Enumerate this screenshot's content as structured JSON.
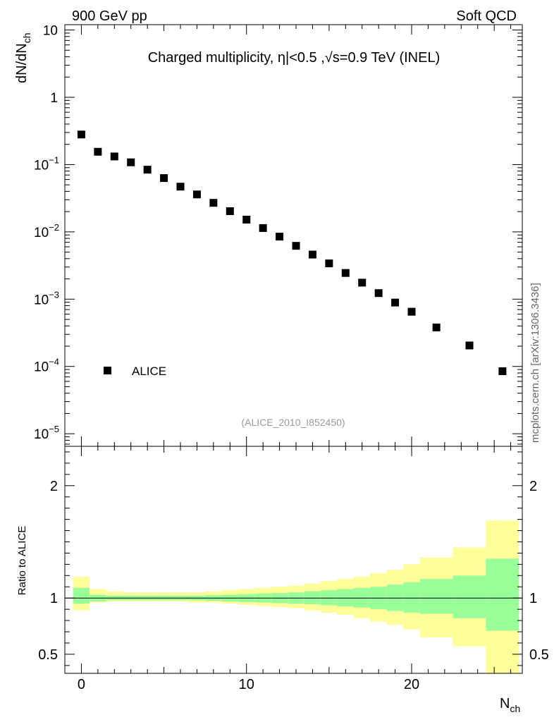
{
  "header": {
    "left_label": "900 GeV pp",
    "right_label": "Soft QCD",
    "side_label": "mcplots.cern.ch [arXiv:1306.3436]"
  },
  "chart_data": [
    {
      "type": "scatter",
      "panel": "main",
      "title": "Charged multiplicity, η|<0.5 ,√s=0.9 TeV (INEL)",
      "ylabel": "dN/dN",
      "ylabel_sub": "ch",
      "xlabel": "N",
      "xlabel_sub": "ch",
      "yscale": "log",
      "ylim": [
        6.5e-06,
        12
      ],
      "xlim": [
        -1,
        26.7
      ],
      "ytick_labels": [
        {
          "value": 10,
          "base": "10",
          "exp": ""
        },
        {
          "value": 1,
          "base": "1",
          "exp": ""
        },
        {
          "value": 0.1,
          "base": "10",
          "exp": "−1"
        },
        {
          "value": 0.01,
          "base": "10",
          "exp": "−2"
        },
        {
          "value": 0.001,
          "base": "10",
          "exp": "−3"
        },
        {
          "value": 0.0001,
          "base": "10",
          "exp": "−4"
        },
        {
          "value": 1e-05,
          "base": "10",
          "exp": "−5"
        }
      ],
      "legend": {
        "label": "ALICE",
        "position": "bottom-left"
      },
      "analysis_label": "(ALICE_2010_I852450)",
      "series": [
        {
          "name": "ALICE",
          "x": [
            0,
            1,
            2,
            3,
            4,
            5,
            6,
            7,
            8,
            9,
            10,
            11,
            12,
            13,
            14,
            15,
            16,
            17,
            18,
            19,
            20,
            21.5,
            23.5,
            25.5
          ],
          "y": [
            0.28,
            0.155,
            0.132,
            0.108,
            0.084,
            0.063,
            0.047,
            0.036,
            0.027,
            0.0203,
            0.0152,
            0.0114,
            0.0085,
            0.0062,
            0.0046,
            0.0034,
            0.00245,
            0.00176,
            0.00123,
            0.00089,
            0.00065,
            0.00038,
            0.000205,
            8.5e-05
          ]
        }
      ]
    },
    {
      "type": "area",
      "panel": "ratio",
      "ylabel": "Ratio to ALICE",
      "xlabel": "N",
      "xlabel_sub": "ch",
      "ylim": [
        0.33,
        2.35
      ],
      "xlim": [
        -1,
        26.7
      ],
      "xticks": [
        0,
        10,
        20
      ],
      "yticks": [
        0.5,
        1,
        2
      ],
      "reference_line": 1,
      "bins": [
        {
          "x0": -0.5,
          "x1": 0.5,
          "stat_lo": 0.95,
          "stat_hi": 1.09,
          "tot_lo": 0.89,
          "tot_hi": 1.19
        },
        {
          "x0": 0.5,
          "x1": 1.5,
          "stat_lo": 0.97,
          "stat_hi": 1.03,
          "tot_lo": 0.96,
          "tot_hi": 1.08
        },
        {
          "x0": 1.5,
          "x1": 2.5,
          "stat_lo": 0.98,
          "stat_hi": 1.02,
          "tot_lo": 0.97,
          "tot_hi": 1.06
        },
        {
          "x0": 2.5,
          "x1": 3.5,
          "stat_lo": 0.98,
          "stat_hi": 1.02,
          "tot_lo": 0.97,
          "tot_hi": 1.05
        },
        {
          "x0": 3.5,
          "x1": 4.5,
          "stat_lo": 0.98,
          "stat_hi": 1.02,
          "tot_lo": 0.97,
          "tot_hi": 1.05
        },
        {
          "x0": 4.5,
          "x1": 5.5,
          "stat_lo": 0.98,
          "stat_hi": 1.02,
          "tot_lo": 0.97,
          "tot_hi": 1.05
        },
        {
          "x0": 5.5,
          "x1": 6.5,
          "stat_lo": 0.98,
          "stat_hi": 1.02,
          "tot_lo": 0.97,
          "tot_hi": 1.05
        },
        {
          "x0": 6.5,
          "x1": 7.5,
          "stat_lo": 0.98,
          "stat_hi": 1.02,
          "tot_lo": 0.96,
          "tot_hi": 1.05
        },
        {
          "x0": 7.5,
          "x1": 8.5,
          "stat_lo": 0.975,
          "stat_hi": 1.025,
          "tot_lo": 0.96,
          "tot_hi": 1.06
        },
        {
          "x0": 8.5,
          "x1": 9.5,
          "stat_lo": 0.97,
          "stat_hi": 1.03,
          "tot_lo": 0.95,
          "tot_hi": 1.07
        },
        {
          "x0": 9.5,
          "x1": 10.5,
          "stat_lo": 0.965,
          "stat_hi": 1.035,
          "tot_lo": 0.94,
          "tot_hi": 1.08
        },
        {
          "x0": 10.5,
          "x1": 11.5,
          "stat_lo": 0.96,
          "stat_hi": 1.04,
          "tot_lo": 0.93,
          "tot_hi": 1.09
        },
        {
          "x0": 11.5,
          "x1": 12.5,
          "stat_lo": 0.955,
          "stat_hi": 1.045,
          "tot_lo": 0.92,
          "tot_hi": 1.1
        },
        {
          "x0": 12.5,
          "x1": 13.5,
          "stat_lo": 0.95,
          "stat_hi": 1.05,
          "tot_lo": 0.91,
          "tot_hi": 1.11
        },
        {
          "x0": 13.5,
          "x1": 14.5,
          "stat_lo": 0.945,
          "stat_hi": 1.06,
          "tot_lo": 0.89,
          "tot_hi": 1.13
        },
        {
          "x0": 14.5,
          "x1": 15.5,
          "stat_lo": 0.935,
          "stat_hi": 1.07,
          "tot_lo": 0.87,
          "tot_hi": 1.15
        },
        {
          "x0": 15.5,
          "x1": 16.5,
          "stat_lo": 0.925,
          "stat_hi": 1.08,
          "tot_lo": 0.85,
          "tot_hi": 1.17
        },
        {
          "x0": 16.5,
          "x1": 17.5,
          "stat_lo": 0.915,
          "stat_hi": 1.09,
          "tot_lo": 0.82,
          "tot_hi": 1.19
        },
        {
          "x0": 17.5,
          "x1": 18.5,
          "stat_lo": 0.9,
          "stat_hi": 1.1,
          "tot_lo": 0.79,
          "tot_hi": 1.22
        },
        {
          "x0": 18.5,
          "x1": 19.5,
          "stat_lo": 0.885,
          "stat_hi": 1.12,
          "tot_lo": 0.76,
          "tot_hi": 1.25
        },
        {
          "x0": 19.5,
          "x1": 20.5,
          "stat_lo": 0.87,
          "stat_hi": 1.14,
          "tot_lo": 0.72,
          "tot_hi": 1.3
        },
        {
          "x0": 20.5,
          "x1": 22.5,
          "stat_lo": 0.86,
          "stat_hi": 1.17,
          "tot_lo": 0.65,
          "tot_hi": 1.36
        },
        {
          "x0": 22.5,
          "x1": 24.5,
          "stat_lo": 0.82,
          "stat_hi": 1.2,
          "tot_lo": 0.57,
          "tot_hi": 1.45
        },
        {
          "x0": 24.5,
          "x1": 26.5,
          "stat_lo": 0.71,
          "stat_hi": 1.35,
          "tot_lo": 0.33,
          "tot_hi": 1.69
        }
      ],
      "colors": {
        "stat": "#99ff99",
        "total": "#ffff99",
        "line": "#000000",
        "marker": "#000000"
      }
    }
  ]
}
